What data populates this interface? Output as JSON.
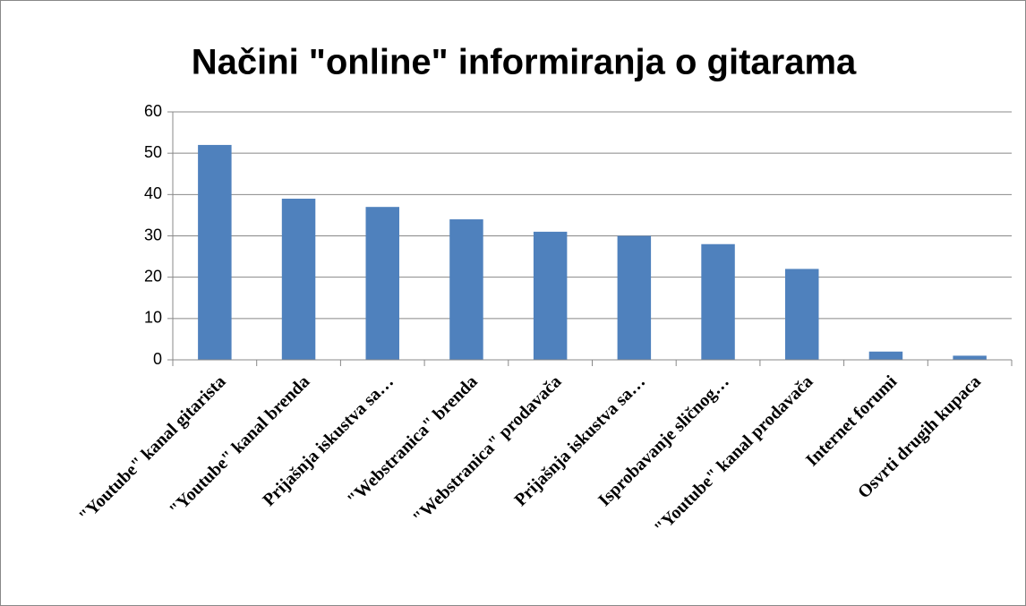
{
  "chart_data": {
    "type": "bar",
    "title": "Načini \"online\" informiranja o gitarama",
    "categories": [
      "\"Youtube\" kanal gitarista",
      "\"Youtube\" kanal brenda",
      "Prijašnja iskustva sa…",
      "\"Webstranica\" brenda",
      "\"Webstranica\" prodavača",
      "Prijašnja iskustva sa…",
      "Isprobavanje sličnog…",
      "\"Youtube\" kanal prodavača",
      "Internet forumi",
      "Osvrti drugih kupaca"
    ],
    "values": [
      52,
      39,
      37,
      34,
      31,
      30,
      28,
      22,
      2,
      1
    ],
    "color": "#4f81bd",
    "ylim": [
      0,
      60
    ],
    "yticks": [
      0,
      10,
      20,
      30,
      40,
      50,
      60
    ],
    "grid": true
  }
}
